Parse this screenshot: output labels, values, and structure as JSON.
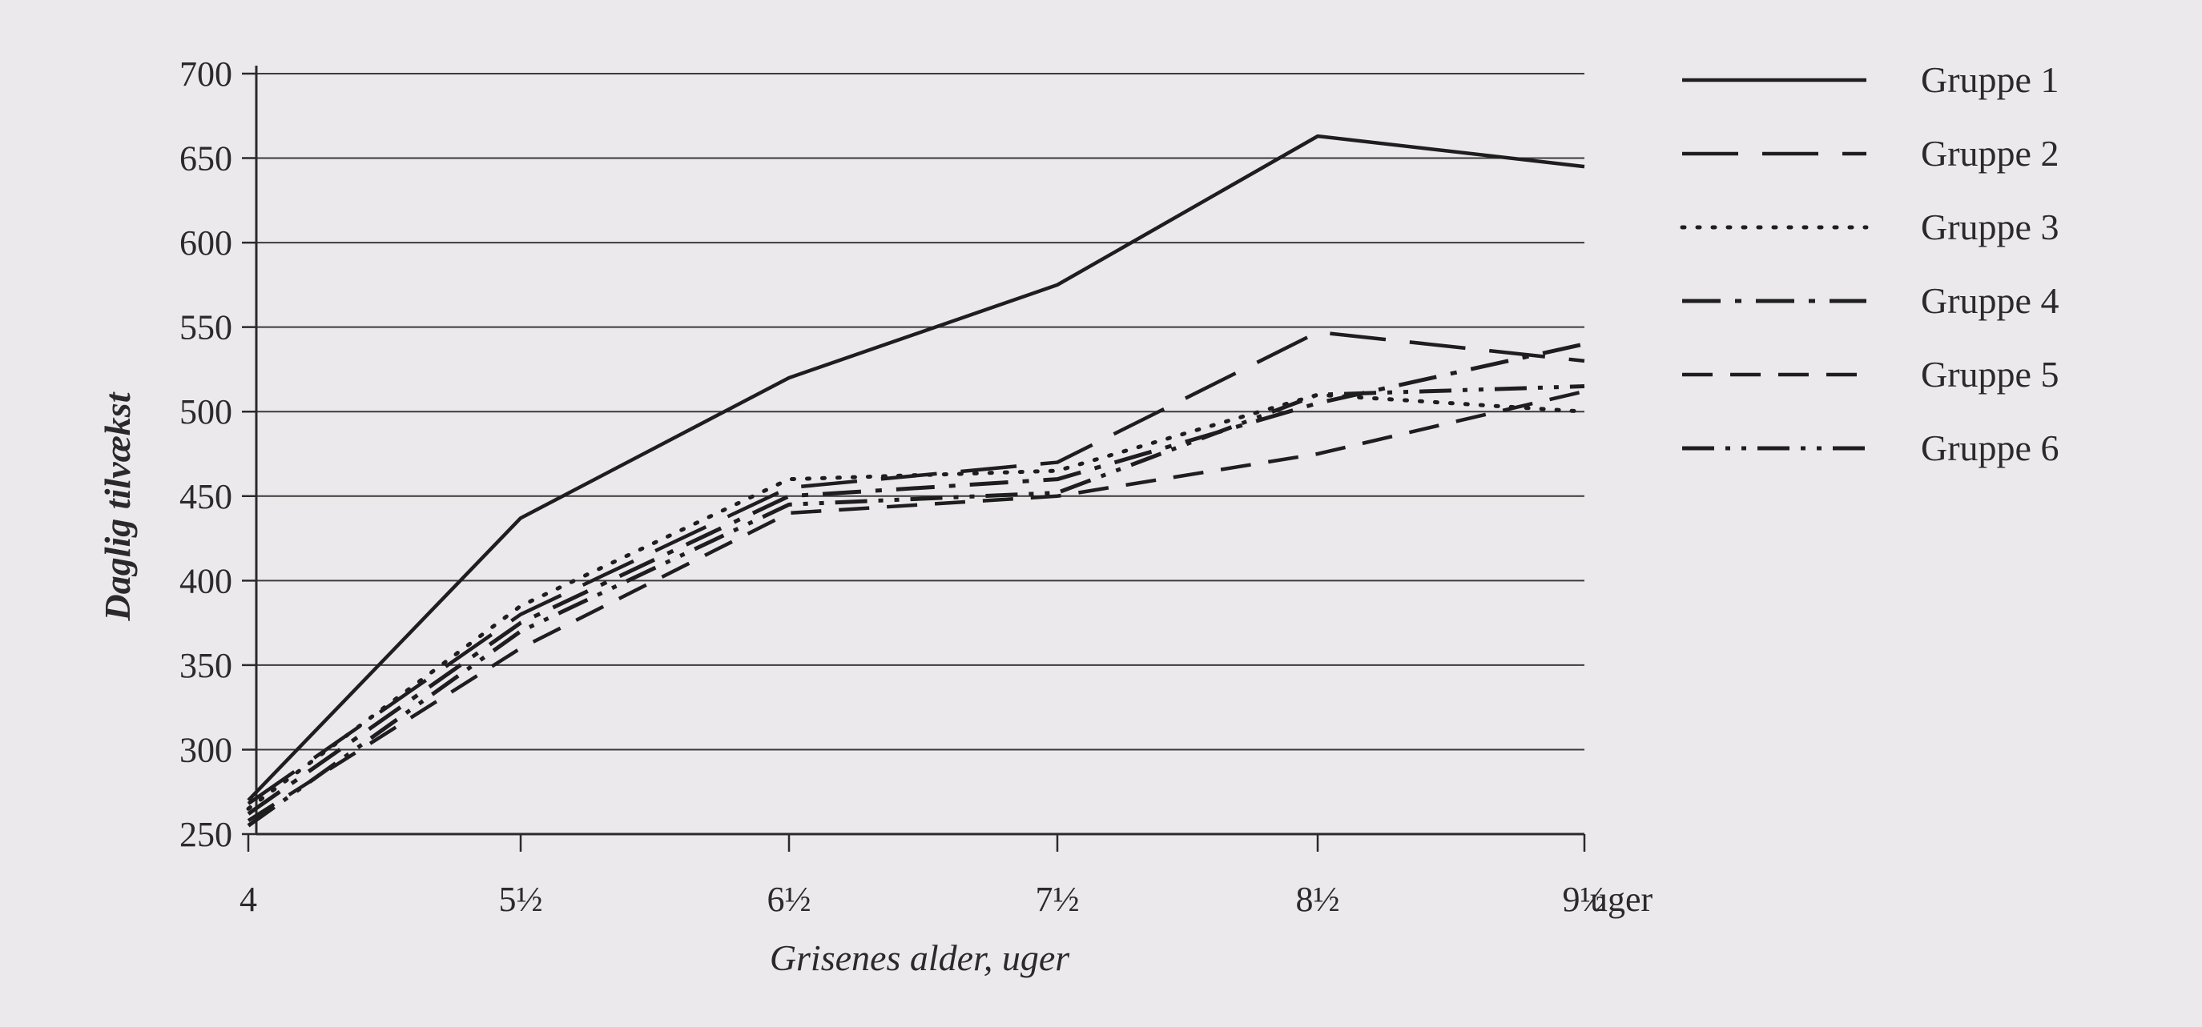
{
  "chart_data": {
    "type": "line",
    "xlabel": "Grisenes alder, uger",
    "ylabel": "Daglig tilvækst",
    "x_unit_label": "uger",
    "x": [
      4,
      5.5,
      6.5,
      7.5,
      8.5,
      9.5
    ],
    "x_tick_labels": [
      "4",
      "5½",
      "6½",
      "7½",
      "8½",
      "9½"
    ],
    "y_ticks": [
      250,
      300,
      350,
      400,
      450,
      500,
      550,
      600,
      650,
      700
    ],
    "ylim": [
      250,
      700
    ],
    "grid": true,
    "legend_position": "right",
    "series": [
      {
        "name": "Gruppe 1",
        "style": "solid",
        "values": [
          270,
          437,
          520,
          575,
          663,
          645
        ]
      },
      {
        "name": "Gruppe 2",
        "style": "long-dash",
        "values": [
          268,
          380,
          455,
          470,
          547,
          530
        ]
      },
      {
        "name": "Gruppe 3",
        "style": "dotted",
        "values": [
          265,
          385,
          460,
          465,
          510,
          500
        ]
      },
      {
        "name": "Gruppe 4",
        "style": "dash-dot",
        "values": [
          262,
          375,
          450,
          460,
          505,
          540
        ]
      },
      {
        "name": "Gruppe 5",
        "style": "dash",
        "values": [
          258,
          360,
          440,
          450,
          475,
          512
        ]
      },
      {
        "name": "Gruppe 6",
        "style": "dash-dot-dot",
        "values": [
          255,
          370,
          445,
          452,
          510,
          515
        ]
      }
    ]
  }
}
